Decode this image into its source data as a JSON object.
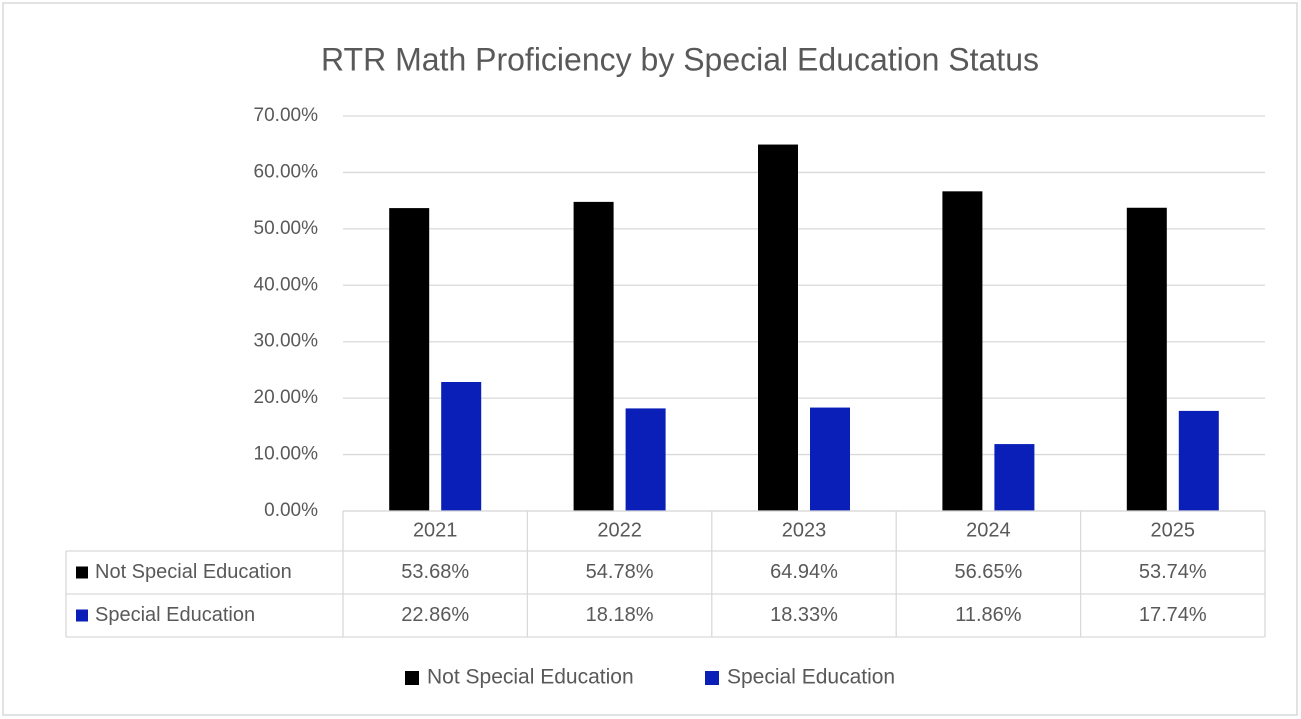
{
  "chart_data": {
    "type": "bar",
    "title": "RTR Math Proficiency by Special Education Status",
    "categories": [
      "2021",
      "2022",
      "2023",
      "2024",
      "2025"
    ],
    "series": [
      {
        "name": "Not Special Education",
        "color": "#000000",
        "values": [
          53.68,
          54.78,
          64.94,
          56.65,
          53.74
        ],
        "value_labels": [
          "53.68%",
          "54.78%",
          "64.94%",
          "56.65%",
          "53.74%"
        ]
      },
      {
        "name": "Special Education",
        "color": "#0a1eb8",
        "values": [
          22.86,
          18.18,
          18.33,
          11.86,
          17.74
        ],
        "value_labels": [
          "22.86%",
          "18.18%",
          "18.33%",
          "11.86%",
          "17.74%"
        ]
      }
    ],
    "ylim": [
      0,
      70
    ],
    "yticks": [
      {
        "value": 0,
        "label": "0.00%"
      },
      {
        "value": 10,
        "label": "10.00%"
      },
      {
        "value": 20,
        "label": "20.00%"
      },
      {
        "value": 30,
        "label": "30.00%"
      },
      {
        "value": 40,
        "label": "40.00%"
      },
      {
        "value": 50,
        "label": "50.00%"
      },
      {
        "value": 60,
        "label": "60.00%"
      },
      {
        "value": 70,
        "label": "70.00%"
      }
    ],
    "grid": true,
    "legend": "bottom"
  }
}
